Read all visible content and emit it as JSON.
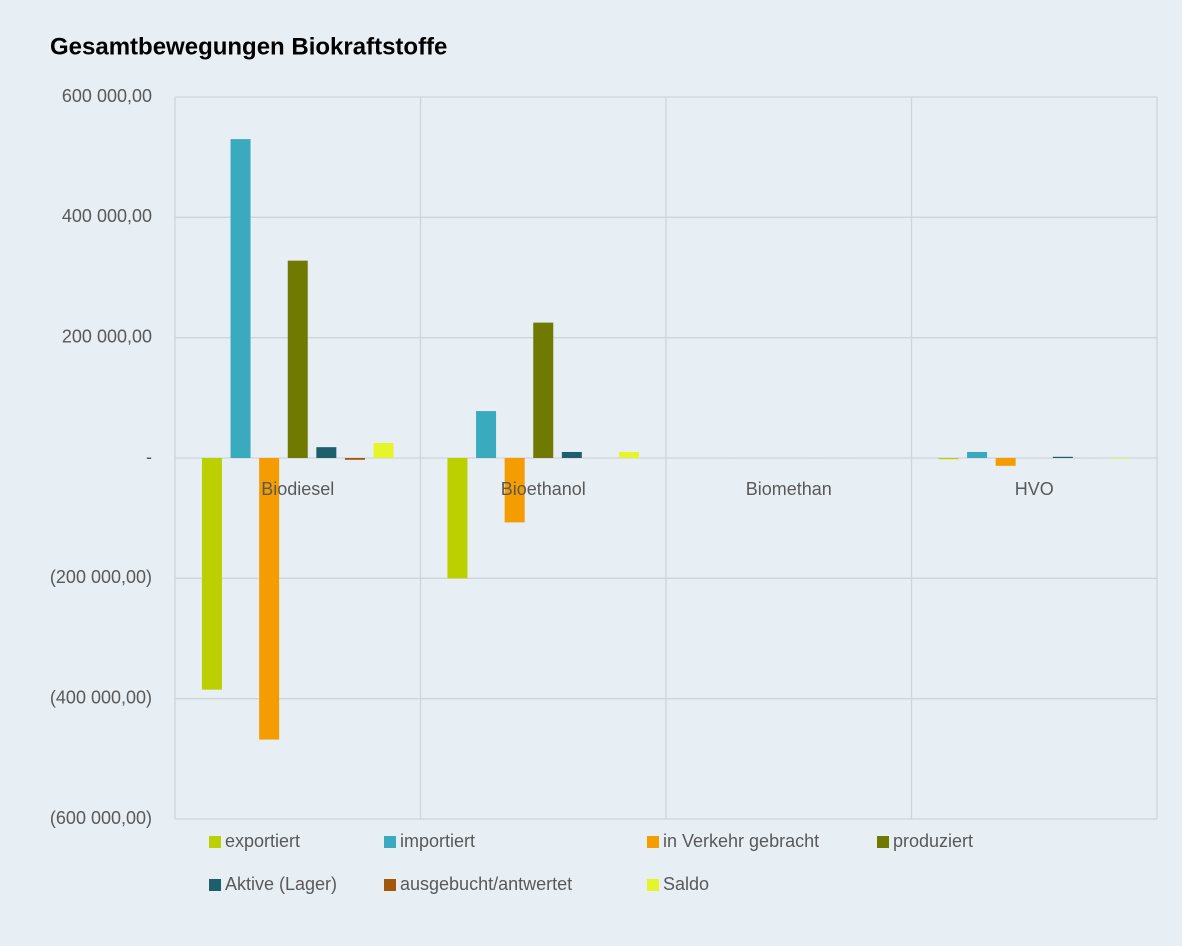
{
  "chart_data": {
    "type": "bar",
    "title": "Gesamtbewegungen Biokraftstoffe",
    "categories": [
      "Biodiesel",
      "Bioethanol",
      "Biomethan",
      "HVO"
    ],
    "series": [
      {
        "name": "exportiert",
        "color": "#bcd000",
        "values": [
          -385000,
          -200000,
          0,
          -2000
        ]
      },
      {
        "name": "importiert",
        "color": "#3aabbf",
        "values": [
          530000,
          78000,
          0,
          10000
        ]
      },
      {
        "name": "in Verkehr gebracht",
        "color": "#f59c00",
        "values": [
          -468000,
          -107000,
          0,
          -13000
        ]
      },
      {
        "name": "produziert",
        "color": "#707a00",
        "values": [
          328000,
          225000,
          0,
          0
        ]
      },
      {
        "name": "Aktive (Lager)",
        "color": "#1e5f6e",
        "values": [
          18000,
          10000,
          0,
          2000
        ]
      },
      {
        "name": "ausgebucht/antwertet",
        "color": "#a0580a",
        "values": [
          -3000,
          0,
          0,
          0
        ]
      },
      {
        "name": "Saldo",
        "color": "#e6f52a",
        "values": [
          25000,
          10000,
          0,
          -1000
        ]
      }
    ],
    "ylim": [
      -600000,
      600000
    ],
    "yticks": [
      {
        "value": -600000,
        "label": "(600 000,00)"
      },
      {
        "value": -400000,
        "label": "(400 000,00)"
      },
      {
        "value": -200000,
        "label": "(200 000,00)"
      },
      {
        "value": 0,
        "label": "-"
      },
      {
        "value": 200000,
        "label": "200 000,00"
      },
      {
        "value": 400000,
        "label": "400 000,00"
      },
      {
        "value": 600000,
        "label": "600 000,00"
      }
    ],
    "grid": true
  }
}
